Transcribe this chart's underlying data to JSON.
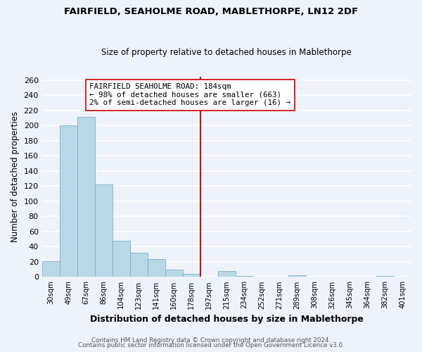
{
  "title": "FAIRFIELD, SEAHOLME ROAD, MABLETHORPE, LN12 2DF",
  "subtitle": "Size of property relative to detached houses in Mablethorpe",
  "xlabel": "Distribution of detached houses by size in Mablethorpe",
  "ylabel": "Number of detached properties",
  "bar_labels": [
    "30sqm",
    "49sqm",
    "67sqm",
    "86sqm",
    "104sqm",
    "123sqm",
    "141sqm",
    "160sqm",
    "178sqm",
    "197sqm",
    "215sqm",
    "234sqm",
    "252sqm",
    "271sqm",
    "289sqm",
    "308sqm",
    "326sqm",
    "345sqm",
    "364sqm",
    "382sqm",
    "401sqm"
  ],
  "bar_heights": [
    21,
    200,
    212,
    122,
    48,
    32,
    24,
    10,
    4,
    0,
    8,
    1,
    0,
    0,
    2,
    0,
    0,
    0,
    0,
    1,
    0
  ],
  "bar_color": "#b8d8e8",
  "bar_edge_color": "#7ab0c8",
  "vline_color": "#cc0000",
  "annotation_title": "FAIRFIELD SEAHOLME ROAD: 184sqm",
  "annotation_line1": "← 98% of detached houses are smaller (663)",
  "annotation_line2": "2% of semi-detached houses are larger (16) →",
  "annotation_box_color": "#ffffff",
  "annotation_box_edge": "#cc0000",
  "ylim": [
    0,
    265
  ],
  "yticks": [
    0,
    20,
    40,
    60,
    80,
    100,
    120,
    140,
    160,
    180,
    200,
    220,
    240,
    260
  ],
  "footer1": "Contains HM Land Registry data © Crown copyright and database right 2024.",
  "footer2": "Contains public sector information licensed under the Open Government Licence v3.0.",
  "bg_color": "#eef2fa",
  "grid_color": "#ffffff",
  "title_fontsize": 9.5,
  "subtitle_fontsize": 8.5
}
